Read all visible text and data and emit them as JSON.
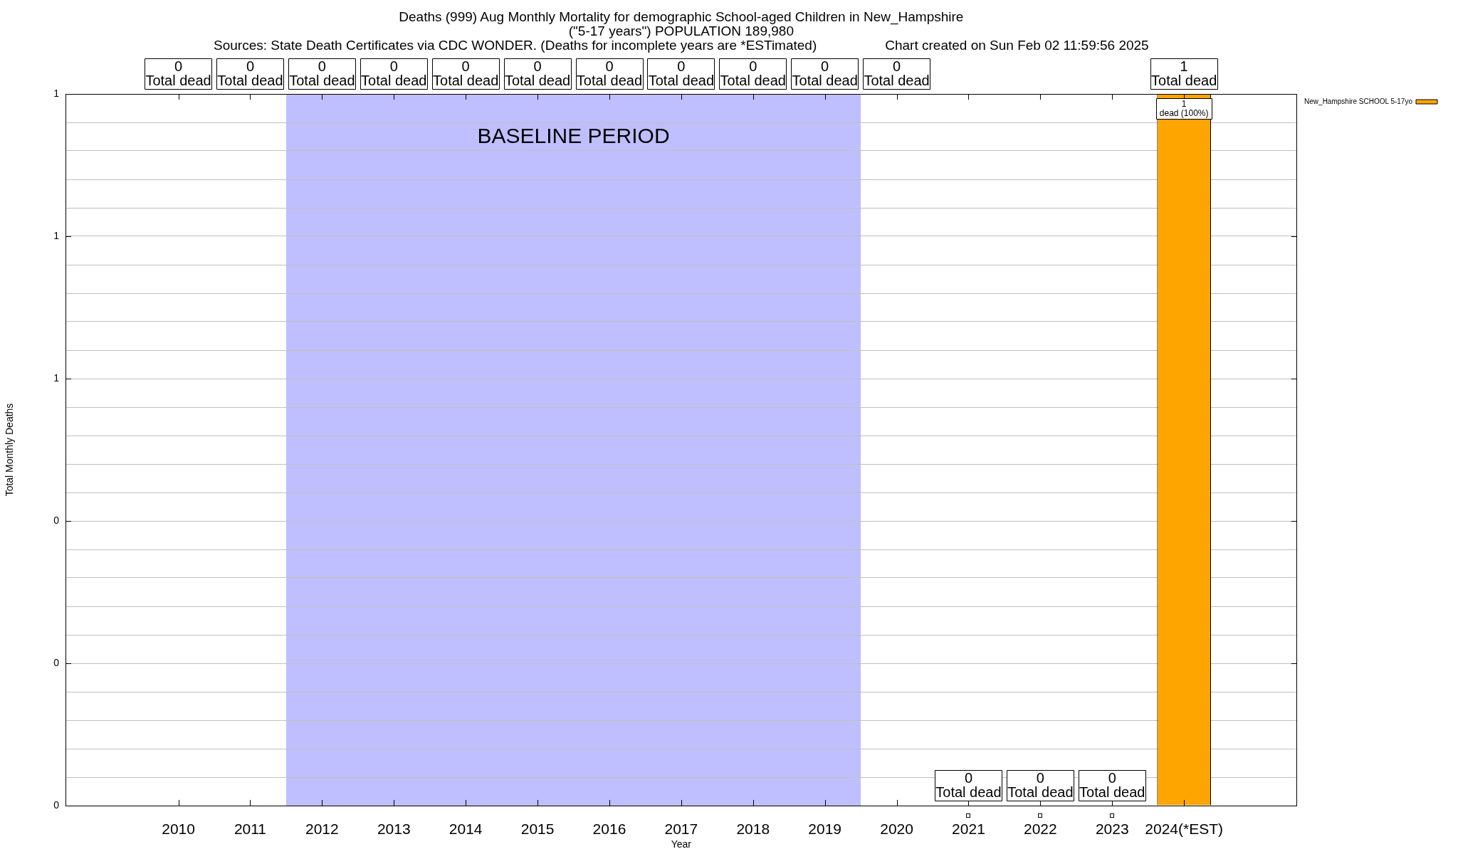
{
  "chart_data": {
    "type": "bar",
    "title": "Deaths (999) Aug Monthly Mortality for demographic School-aged Children in New_Hampshire",
    "subtitle": "(\"5-17 years\") POPULATION 189,980",
    "xlabel": "Year",
    "ylabel": "Total Monthly Deaths",
    "annotations": [
      "Sources: State Death Certificates via CDC WONDER. (Deaths for incomplete years are *ESTimated)",
      "Chart created on Sun Feb 02 11:59:56 2025",
      {
        "text": "0\nTotal dead",
        "x": "2010"
      },
      {
        "text": "0\nTotal dead",
        "x": "2011"
      },
      {
        "text": "0\nTotal dead",
        "x": "2012"
      },
      {
        "text": "0\nTotal dead",
        "x": "2013"
      },
      {
        "text": "0\nTotal dead",
        "x": "2014"
      },
      {
        "text": "0\nTotal dead",
        "x": "2015"
      },
      {
        "text": "0\nTotal dead",
        "x": "2016"
      },
      {
        "text": "0\nTotal dead",
        "x": "2017"
      },
      {
        "text": "0\nTotal dead",
        "x": "2018"
      },
      {
        "text": "0\nTotal dead",
        "x": "2019"
      },
      {
        "text": "0\nTotal dead",
        "x": "2020"
      },
      {
        "text": "0\nTotal dead",
        "x": "2021",
        "y": 0
      },
      {
        "text": "0\nTotal dead",
        "x": "2022",
        "y": 0
      },
      {
        "text": "0\nTotal dead",
        "x": "2023",
        "y": 0
      },
      {
        "text": "1\nTotal dead",
        "x": "2024(*EST)",
        "y": 1
      }
    ],
    "categories": [
      "2010",
      "2011",
      "2012",
      "2013",
      "2014",
      "2015",
      "2016",
      "2017",
      "2018",
      "2019",
      "2020",
      "2021",
      "2022",
      "2023",
      "2024(*EST)"
    ],
    "series": [
      {
        "name": "New_Hampshire SCHOOL 5-17yo",
        "color": "#ffa500",
        "values": [
          0,
          0,
          0,
          0,
          0,
          0,
          0,
          0,
          0,
          0,
          0,
          0,
          0,
          0,
          1
        ],
        "value_labels": [
          null,
          null,
          null,
          null,
          null,
          null,
          null,
          null,
          null,
          null,
          null,
          null,
          null,
          null,
          "1\ndead (100%)"
        ]
      }
    ],
    "ylim": [
      0,
      1
    ],
    "yticks": [
      0,
      {
        "value": 0.04,
        "label": null
      },
      {
        "value": 0.08,
        "label": null
      },
      {
        "value": 0.12,
        "label": null
      },
      {
        "value": 0.16,
        "label": null
      },
      {
        "value": 0.2,
        "label": "0"
      },
      {
        "value": 0.24,
        "label": null
      },
      {
        "value": 0.28,
        "label": null
      },
      {
        "value": 0.32,
        "label": null
      },
      {
        "value": 0.36,
        "label": null
      },
      {
        "value": 0.4,
        "label": "0"
      },
      {
        "value": 0.44,
        "label": null
      },
      {
        "value": 0.48,
        "label": null
      },
      {
        "value": 0.52,
        "label": null
      },
      {
        "value": 0.56,
        "label": null
      },
      {
        "value": 0.6,
        "label": "1"
      },
      {
        "value": 0.64,
        "label": null
      },
      {
        "value": 0.68,
        "label": null
      },
      {
        "value": 0.72,
        "label": null
      },
      {
        "value": 0.76,
        "label": null
      },
      {
        "value": 0.8,
        "label": "1"
      },
      {
        "value": 0.84,
        "label": null
      },
      {
        "value": 0.88,
        "label": null
      },
      {
        "value": 0.92,
        "label": null
      },
      {
        "value": 0.96,
        "label": null
      },
      1
    ],
    "grid": "y",
    "legend": "top right",
    "bands": [
      {
        "axis": "x",
        "from": "2012",
        "to": "2019",
        "label": "BASELINE PERIOD",
        "color": "#bfbfff"
      }
    ]
  }
}
